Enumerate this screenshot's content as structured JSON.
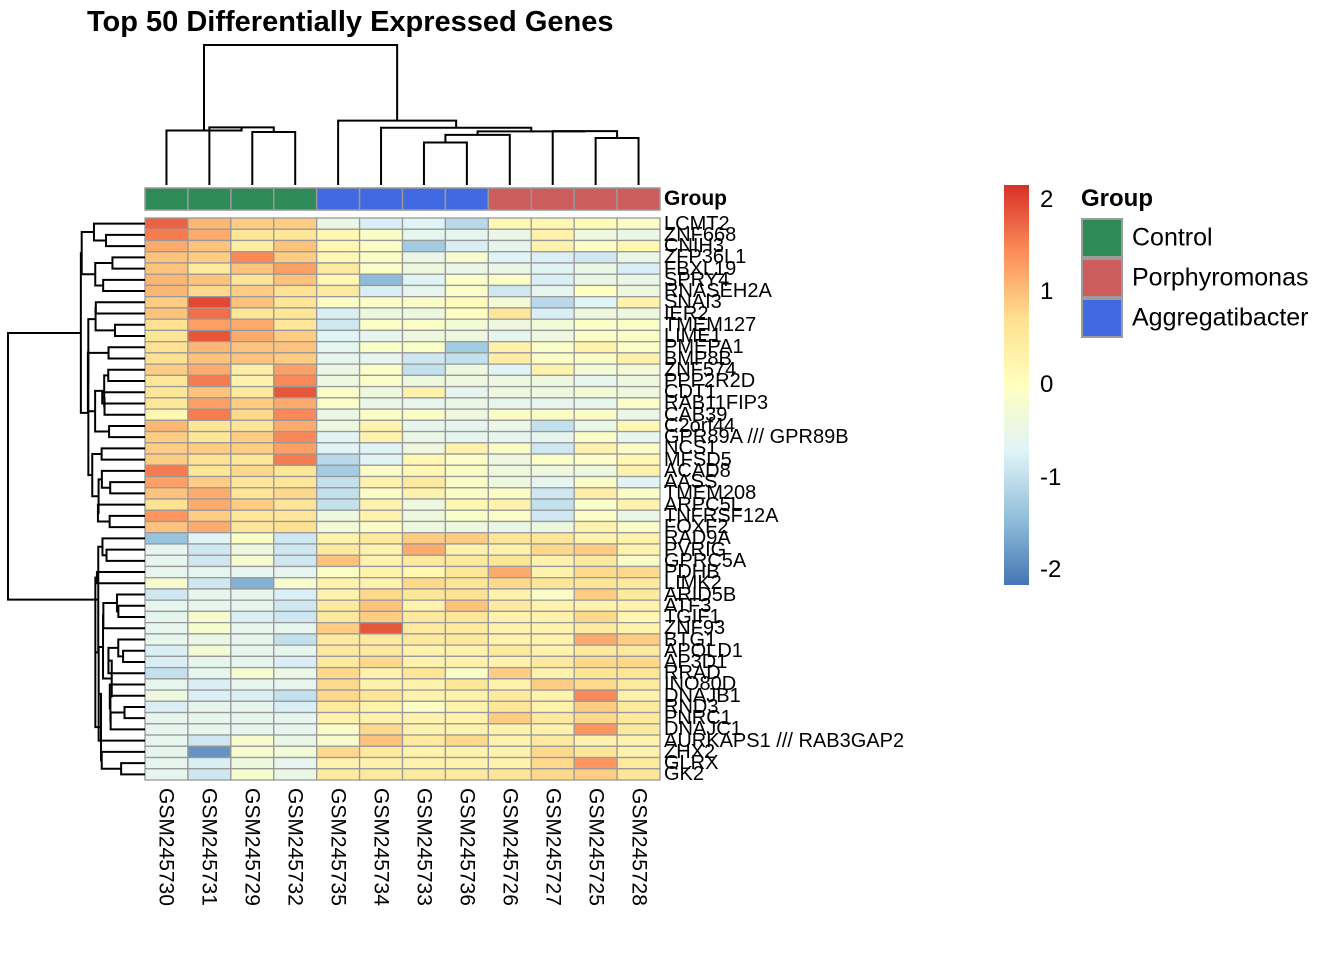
{
  "title": "Top 50 Differentially Expressed Genes",
  "annotation_title": "Group",
  "group_legend": {
    "title": "Group",
    "items": [
      {
        "label": "Control",
        "color": "#2E8B57"
      },
      {
        "label": "Porphyromonas",
        "color": "#CD5C5C"
      },
      {
        "label": "Aggregatibacter",
        "color": "#4169E1"
      }
    ]
  },
  "colorbar": {
    "ticks": [
      {
        "label": "2",
        "value": 2
      },
      {
        "label": "1",
        "value": 1
      },
      {
        "label": "0",
        "value": 0
      },
      {
        "label": "-1",
        "value": -1
      },
      {
        "label": "-2",
        "value": -2
      }
    ],
    "range": [
      -2.16,
      2.16
    ]
  },
  "style": {
    "border_color": "#999999",
    "dendrogram_color": "#000000"
  },
  "chart_data": {
    "type": "heatmap",
    "title": "Top 50 Differentially Expressed Genes",
    "legend_position": "right",
    "grid": true,
    "colorscale": {
      "domain": [
        -2.2,
        -1.467,
        -0.733,
        0,
        0.733,
        1.467,
        2.2
      ],
      "colors": [
        "#4575B4",
        "#91BFDB",
        "#E0F3F8",
        "#FFFFBF",
        "#FEE090",
        "#FC8D59",
        "#D73027"
      ]
    },
    "columns": [
      "GSM245730",
      "GSM245731",
      "GSM245729",
      "GSM245732",
      "GSM245735",
      "GSM245734",
      "GSM245733",
      "GSM245736",
      "GSM245726",
      "GSM245727",
      "GSM245725",
      "GSM245728"
    ],
    "column_groups": [
      "Control",
      "Control",
      "Control",
      "Control",
      "Aggregatibacter",
      "Aggregatibacter",
      "Aggregatibacter",
      "Aggregatibacter",
      "Porphyromonas",
      "Porphyromonas",
      "Porphyromonas",
      "Porphyromonas"
    ],
    "rows": [
      "LCMT2",
      "ZNF668",
      "CNIH3",
      "ZFP36L1",
      "FBXL19",
      "SPRY4",
      "RNASEH2A",
      "SNAI3",
      "IER2",
      "TMEM127",
      "LIME1",
      "PMEPA1",
      "BMP8B",
      "ZNF574",
      "PPP2R2D",
      "CDT1",
      "RAB11FIP3",
      "CAB39",
      "C2orf44",
      "GPR89A /// GPR89B",
      "NCS1",
      "MFSD5",
      "ACAD8",
      "AASS",
      "TMEM208",
      "ARPC5L",
      "TNFRSF12A",
      "FOXF2",
      "RAD9A",
      "PVRIG",
      "GPRC5A",
      "PDHB",
      "LIMK2",
      "ARID5B",
      "ATF3",
      "TGIF1",
      "ZNF93",
      "BTG1",
      "APOLD1",
      "AP3D1",
      "RRAD",
      "INO80D",
      "DNAJB1",
      "RND3",
      "PNRC1",
      "DNAJC1",
      "AURKAPS1 /// RAB3GAP2",
      "ZHX2",
      "GLRX",
      "GK2"
    ],
    "values": [
      [
        1.8,
        1.1,
        0.9,
        0.9,
        -0.5,
        -0.8,
        -0.7,
        -1.1,
        0.2,
        0.2,
        0.1,
        -0.1
      ],
      [
        1.6,
        1.2,
        0.6,
        0.6,
        0.2,
        -0.1,
        -0.6,
        -0.6,
        -0.5,
        0.3,
        -0.4,
        -0.5
      ],
      [
        1.2,
        1.0,
        0.4,
        1.0,
        0.2,
        -0.1,
        -1.3,
        -0.8,
        -0.6,
        0.3,
        -0.1,
        0.2
      ],
      [
        1.0,
        0.9,
        1.5,
        0.9,
        0.2,
        -0.1,
        -0.5,
        -0.2,
        -0.7,
        -0.8,
        -0.9,
        -0.5
      ],
      [
        1.0,
        0.5,
        1.0,
        1.3,
        0.5,
        -0.1,
        -0.4,
        -0.5,
        -0.5,
        -0.7,
        -0.5,
        -0.8
      ],
      [
        1.1,
        1.0,
        0.6,
        1.0,
        0.2,
        -1.5,
        -0.7,
        -0.1,
        -0.1,
        -0.8,
        -0.5,
        -0.5
      ],
      [
        1.1,
        0.8,
        0.9,
        0.7,
        0.5,
        -0.8,
        -0.6,
        -0.1,
        -0.9,
        -0.6,
        0.0,
        -0.4
      ],
      [
        0.9,
        2.0,
        1.0,
        0.6,
        -0.1,
        -0.1,
        -0.1,
        0.1,
        -0.3,
        -1.1,
        -0.7,
        0.3
      ],
      [
        1.0,
        1.7,
        0.6,
        0.6,
        -0.8,
        -0.4,
        -0.4,
        0.0,
        0.6,
        -0.8,
        -0.4,
        -0.4
      ],
      [
        0.7,
        1.3,
        1.2,
        0.6,
        -0.9,
        -0.1,
        -0.1,
        -0.3,
        -0.4,
        -0.3,
        -0.1,
        -0.1
      ],
      [
        0.6,
        1.9,
        1.2,
        0.9,
        -0.7,
        -0.6,
        -0.4,
        -0.4,
        -0.6,
        -0.4,
        -0.1,
        -0.1
      ],
      [
        0.7,
        1.1,
        1.0,
        1.0,
        -0.6,
        -0.1,
        -0.1,
        -1.3,
        0.3,
        -0.1,
        0.3,
        -0.1
      ],
      [
        0.7,
        1.0,
        1.0,
        0.9,
        -0.6,
        -0.6,
        -0.9,
        -1.0,
        0.4,
        -0.1,
        -0.1,
        0.3
      ],
      [
        0.9,
        1.2,
        0.4,
        1.3,
        -0.5,
        -0.1,
        -1.0,
        -0.4,
        -0.7,
        0.3,
        -0.3,
        -0.3
      ],
      [
        0.6,
        1.6,
        0.3,
        1.5,
        -0.4,
        -0.1,
        -0.4,
        -0.4,
        -0.4,
        -0.4,
        -0.6,
        -0.4
      ],
      [
        0.6,
        1.0,
        0.5,
        1.9,
        -0.1,
        -0.4,
        0.3,
        -0.6,
        -0.4,
        -0.4,
        -0.3,
        -0.4
      ],
      [
        0.6,
        1.3,
        0.9,
        1.2,
        -0.1,
        -0.5,
        -0.6,
        -0.5,
        -0.6,
        -0.6,
        -0.6,
        -0.1
      ],
      [
        0.2,
        1.6,
        0.8,
        1.5,
        -0.5,
        -0.1,
        -0.1,
        -0.4,
        -0.1,
        -0.1,
        -0.1,
        -0.5
      ],
      [
        1.1,
        0.6,
        0.6,
        1.2,
        -0.4,
        0.3,
        -0.6,
        -0.6,
        -0.5,
        -1.0,
        -0.5,
        0.2
      ],
      [
        0.9,
        0.6,
        0.9,
        1.5,
        -0.7,
        0.3,
        -0.5,
        -0.6,
        -0.6,
        -0.6,
        -0.1,
        -0.6
      ],
      [
        0.9,
        0.9,
        0.9,
        1.3,
        -0.7,
        -0.7,
        -0.4,
        0.3,
        -0.1,
        -0.9,
        0.3,
        -0.1
      ],
      [
        0.9,
        0.7,
        0.6,
        1.6,
        -1.1,
        -0.7,
        0.2,
        -0.1,
        -0.4,
        -0.1,
        -0.1,
        0.2
      ],
      [
        1.6,
        0.6,
        0.8,
        0.6,
        -1.3,
        -0.1,
        0.2,
        -0.1,
        -0.4,
        -0.4,
        -0.4,
        0.3
      ],
      [
        1.3,
        0.9,
        0.6,
        0.6,
        -1.0,
        0.3,
        0.5,
        -0.1,
        -0.4,
        -0.6,
        -0.1,
        -0.7
      ],
      [
        1.0,
        1.2,
        0.6,
        0.8,
        -1.0,
        -0.1,
        0.3,
        -0.1,
        -0.1,
        -0.9,
        0.4,
        -0.1
      ],
      [
        0.7,
        1.2,
        0.9,
        0.6,
        -1.0,
        0.3,
        -0.4,
        0.2,
        0.3,
        -1.0,
        -0.1,
        0.3
      ],
      [
        1.4,
        0.9,
        0.6,
        0.6,
        -0.4,
        0.3,
        -0.4,
        -0.1,
        -0.1,
        -0.9,
        -0.1,
        -0.5
      ],
      [
        1.0,
        1.2,
        0.6,
        0.7,
        -0.3,
        -0.1,
        -0.4,
        -0.4,
        -0.5,
        -0.4,
        0.3,
        -0.1
      ],
      [
        -1.4,
        -0.7,
        -0.1,
        -0.9,
        0.3,
        0.5,
        0.9,
        0.9,
        0.6,
        0.6,
        0.3,
        0.3
      ],
      [
        -0.6,
        -0.9,
        -0.4,
        -0.9,
        0.5,
        0.3,
        1.2,
        0.3,
        0.3,
        0.8,
        0.9,
        0.3
      ],
      [
        -0.6,
        -0.9,
        -0.2,
        -0.9,
        1.0,
        0.3,
        0.5,
        0.5,
        0.6,
        0.3,
        0.5,
        -0.1
      ],
      [
        -0.6,
        -0.6,
        -0.6,
        -0.6,
        -0.1,
        0.3,
        0.2,
        0.6,
        1.2,
        0.3,
        0.8,
        0.8
      ],
      [
        -0.2,
        -0.9,
        -1.6,
        -0.2,
        0.3,
        0.3,
        0.8,
        0.6,
        0.8,
        0.6,
        0.6,
        0.5
      ],
      [
        -0.9,
        -0.6,
        -0.6,
        -0.8,
        0.3,
        0.8,
        0.6,
        0.7,
        0.3,
        -0.1,
        0.9,
        0.5
      ],
      [
        -0.6,
        -0.6,
        -0.6,
        -0.9,
        0.5,
        1.0,
        0.3,
        1.0,
        0.5,
        0.3,
        0.3,
        0.3
      ],
      [
        -0.6,
        -0.2,
        -0.8,
        -0.9,
        0.5,
        0.9,
        0.5,
        0.6,
        0.3,
        0.3,
        0.8,
        0.2
      ],
      [
        -0.6,
        -0.2,
        -0.6,
        -0.6,
        0.9,
        1.9,
        0.5,
        0.5,
        0.3,
        0.3,
        0.5,
        0.3
      ],
      [
        -0.6,
        -0.5,
        -0.6,
        -1.0,
        0.5,
        0.5,
        0.5,
        0.5,
        0.3,
        0.3,
        1.2,
        0.9
      ],
      [
        -0.8,
        -0.3,
        -0.6,
        -0.6,
        0.5,
        0.5,
        0.3,
        0.3,
        0.5,
        0.3,
        0.5,
        0.5
      ],
      [
        -0.8,
        -0.6,
        -0.6,
        -0.8,
        0.5,
        0.8,
        0.3,
        0.3,
        0.3,
        0.5,
        0.8,
        0.8
      ],
      [
        -1.0,
        -0.6,
        -0.2,
        -0.5,
        0.8,
        0.3,
        0.6,
        -0.1,
        0.9,
        0.3,
        0.6,
        0.6
      ],
      [
        -0.6,
        -0.8,
        -0.6,
        -0.6,
        0.8,
        0.3,
        0.3,
        0.6,
        0.3,
        0.9,
        0.8,
        0.5
      ],
      [
        -0.4,
        -0.8,
        -0.8,
        -1.0,
        0.8,
        0.6,
        0.3,
        0.3,
        0.5,
        0.3,
        1.5,
        0.3
      ],
      [
        -0.8,
        -0.6,
        -0.6,
        -0.8,
        0.5,
        0.3,
        -0.1,
        0.3,
        0.6,
        0.3,
        0.9,
        0.5
      ],
      [
        -0.6,
        -0.6,
        -0.6,
        -0.6,
        0.3,
        0.3,
        0.3,
        0.3,
        0.9,
        0.5,
        0.8,
        0.5
      ],
      [
        -0.6,
        -0.6,
        -0.6,
        -0.6,
        -0.1,
        0.8,
        0.3,
        0.3,
        0.3,
        0.3,
        1.4,
        0.5
      ],
      [
        -0.6,
        -0.9,
        -0.2,
        -0.5,
        -0.2,
        1.0,
        0.5,
        0.8,
        0.3,
        0.5,
        0.3,
        0.3
      ],
      [
        -0.6,
        -1.9,
        -0.2,
        -0.3,
        0.8,
        0.5,
        0.3,
        0.3,
        0.3,
        0.8,
        0.6,
        0.3
      ],
      [
        -0.6,
        -0.8,
        -0.4,
        -0.6,
        0.3,
        0.3,
        0.3,
        0.3,
        0.3,
        0.8,
        1.4,
        0.5
      ],
      [
        -0.6,
        -0.9,
        -0.2,
        -0.5,
        0.5,
        0.5,
        0.5,
        0.5,
        0.6,
        0.8,
        0.9,
        0.6
      ]
    ]
  }
}
